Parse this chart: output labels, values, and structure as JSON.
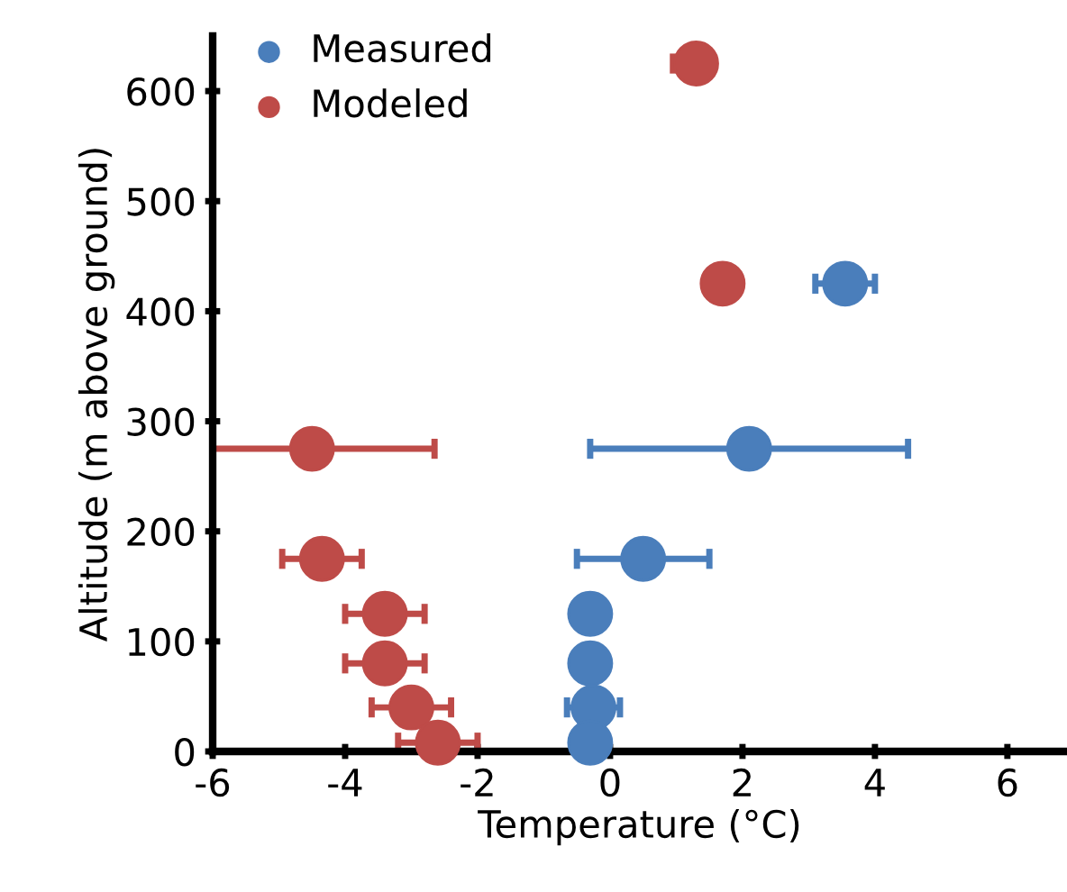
{
  "chart_data": {
    "type": "scatter",
    "xlabel": "Temperature (°C)",
    "ylabel": "Altitude (m above ground)",
    "xlim": [
      -6,
      6.9
    ],
    "xticks": [
      -6,
      -4,
      -2,
      0,
      2,
      4,
      6
    ],
    "ylim": [
      0,
      650
    ],
    "yticks": [
      0,
      100,
      200,
      300,
      400,
      500,
      600
    ],
    "grid": false,
    "legend": "top left",
    "marker": "circle",
    "series": [
      {
        "name": "Measured",
        "color": "#4a7ebb",
        "x": [
          3.55,
          2.1,
          0.5,
          -0.3,
          -0.3,
          -0.25,
          -0.3
        ],
        "values": [
          425,
          275,
          175,
          125,
          80,
          40,
          8
        ],
        "xerrors": [
          [
            3.1,
            4.0
          ],
          [
            -0.3,
            4.5
          ],
          [
            -0.5,
            1.5
          ],
          null,
          null,
          [
            -0.65,
            0.15
          ],
          null
        ]
      },
      {
        "name": "Modeled",
        "color": "#be4b48",
        "x": [
          1.3,
          1.7,
          -4.5,
          -4.35,
          -3.4,
          -3.4,
          -3.0,
          -2.6
        ],
        "values": [
          625,
          425,
          275,
          175,
          125,
          80,
          40,
          8
        ],
        "xerrors": [
          [
            0.95,
            1.3
          ],
          null,
          [
            -6,
            -2.65
          ],
          [
            -4.95,
            -3.75
          ],
          [
            -4.0,
            -2.8
          ],
          [
            -4.0,
            -2.8
          ],
          [
            -3.6,
            -2.4
          ],
          [
            -3.2,
            -2.0
          ]
        ]
      }
    ]
  }
}
